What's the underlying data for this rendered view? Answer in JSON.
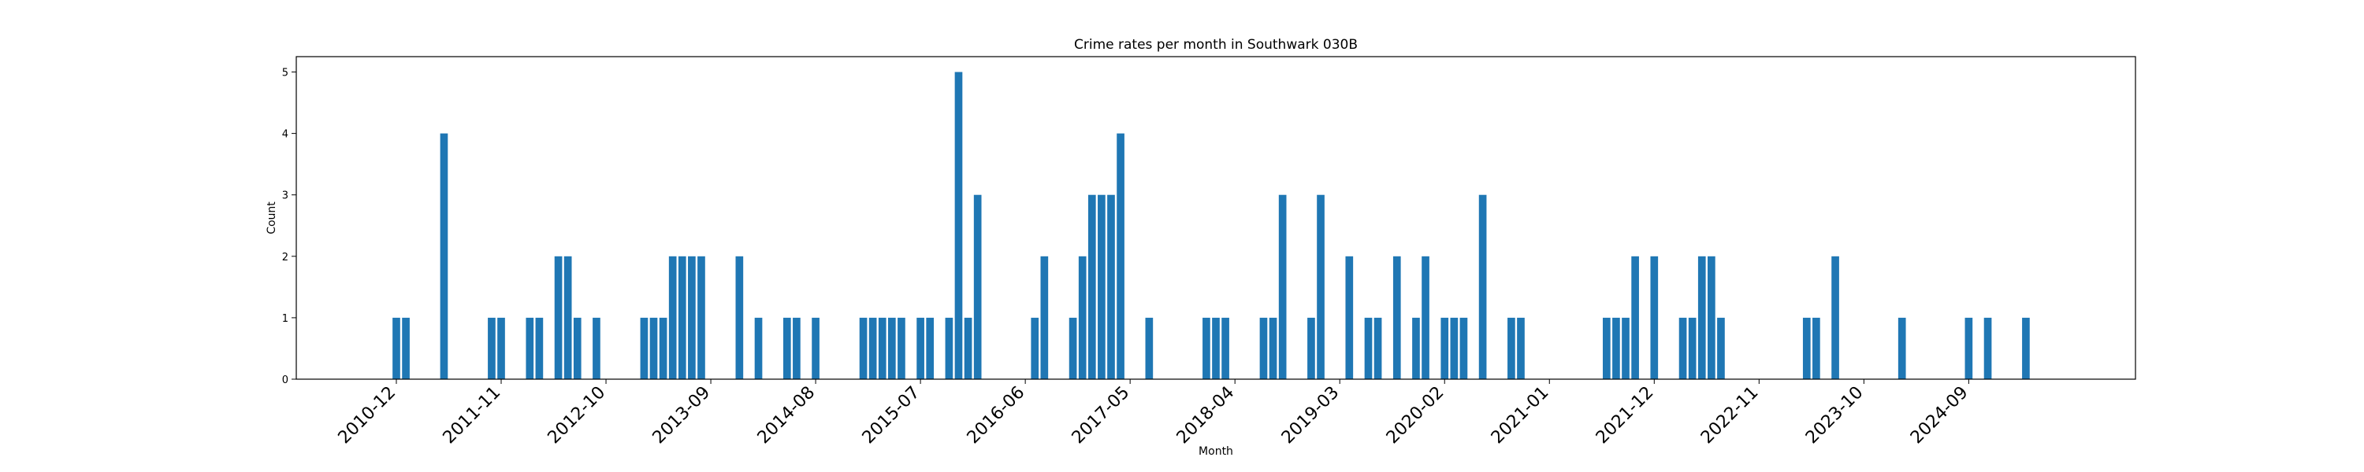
{
  "chart_data": {
    "type": "bar",
    "title": "Crime rates per month in Southwark 030B",
    "xlabel": "Month",
    "ylabel": "Count",
    "ylim": [
      0,
      5.25
    ],
    "yticks": [
      0,
      1,
      2,
      3,
      4,
      5
    ],
    "xtick_labels": [
      "2010-12",
      "2011-11",
      "2012-10",
      "2013-09",
      "2014-08",
      "2015-07",
      "2016-06",
      "2017-05",
      "2018-04",
      "2019-03",
      "2020-02",
      "2021-01",
      "2021-12",
      "2022-11",
      "2023-10",
      "2024-09"
    ],
    "bar_color": "#1f77b4",
    "grid": false,
    "legend": "none",
    "categories": [
      "2010-12",
      "2011-01",
      "2011-05",
      "2011-10",
      "2011-11",
      "2012-02",
      "2012-03",
      "2012-05",
      "2012-06",
      "2012-07",
      "2012-09",
      "2013-02",
      "2013-03",
      "2013-04",
      "2013-05",
      "2013-06",
      "2013-07",
      "2013-08",
      "2013-12",
      "2014-02",
      "2014-05",
      "2014-06",
      "2014-08",
      "2015-01",
      "2015-02",
      "2015-03",
      "2015-04",
      "2015-05",
      "2015-07",
      "2015-08",
      "2015-10",
      "2015-11",
      "2015-12",
      "2016-01",
      "2016-07",
      "2016-08",
      "2016-11",
      "2016-12",
      "2017-01",
      "2017-02",
      "2017-03",
      "2017-04",
      "2017-07",
      "2018-01",
      "2018-02",
      "2018-03",
      "2018-07",
      "2018-08",
      "2018-09",
      "2018-12",
      "2019-01",
      "2019-04",
      "2019-06",
      "2019-07",
      "2019-09",
      "2019-11",
      "2019-12",
      "2020-02",
      "2020-03",
      "2020-04",
      "2020-06",
      "2020-09",
      "2020-10",
      "2021-07",
      "2021-08",
      "2021-09",
      "2021-10",
      "2021-12",
      "2022-03",
      "2022-04",
      "2022-05",
      "2022-06",
      "2022-07",
      "2023-04",
      "2023-05",
      "2023-07",
      "2024-02",
      "2024-09",
      "2024-11",
      "2025-03"
    ],
    "values": [
      1,
      1,
      4,
      1,
      1,
      1,
      1,
      2,
      2,
      1,
      1,
      1,
      1,
      1,
      2,
      2,
      2,
      2,
      2,
      1,
      1,
      1,
      1,
      1,
      1,
      1,
      1,
      1,
      1,
      1,
      1,
      5,
      1,
      3,
      1,
      2,
      1,
      2,
      3,
      3,
      3,
      4,
      1,
      1,
      1,
      1,
      1,
      1,
      3,
      1,
      3,
      2,
      1,
      1,
      2,
      1,
      2,
      1,
      1,
      1,
      3,
      1,
      1,
      1,
      1,
      1,
      2,
      2,
      1,
      1,
      2,
      2,
      1,
      1,
      1,
      2,
      1,
      1,
      1,
      1
    ]
  }
}
